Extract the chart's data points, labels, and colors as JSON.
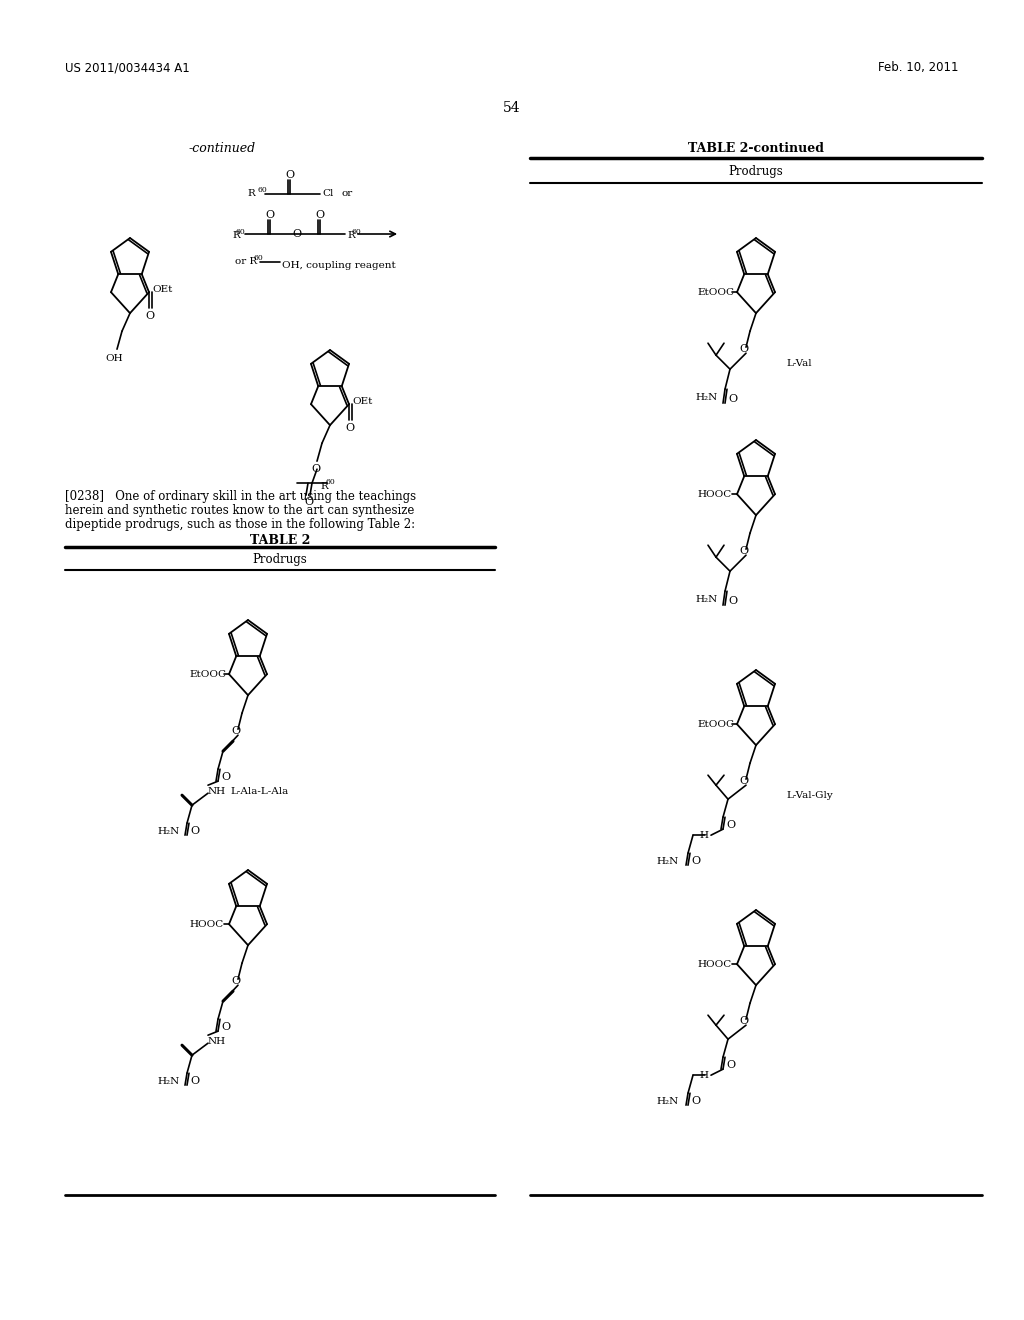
{
  "bg_color": "#ffffff",
  "page_number": "54",
  "header_left": "US 2011/0034434 A1",
  "header_right": "Feb. 10, 2011",
  "left_label": "-continued",
  "right_table_title": "TABLE 2-continued",
  "table2_title": "TABLE 2",
  "prodrugs_label": "Prodrugs",
  "paragraph": "[0238]   One of ordinary skill in the art using the teachings\nherein and synthetic routes know to the art can synthesize\ndipeptide prodrugs, such as those in the following Table 2:",
  "label_lval": "L-Val",
  "label_lala": "L-Ala-L-Ala",
  "label_lvalgly": "L-Val-Gly"
}
